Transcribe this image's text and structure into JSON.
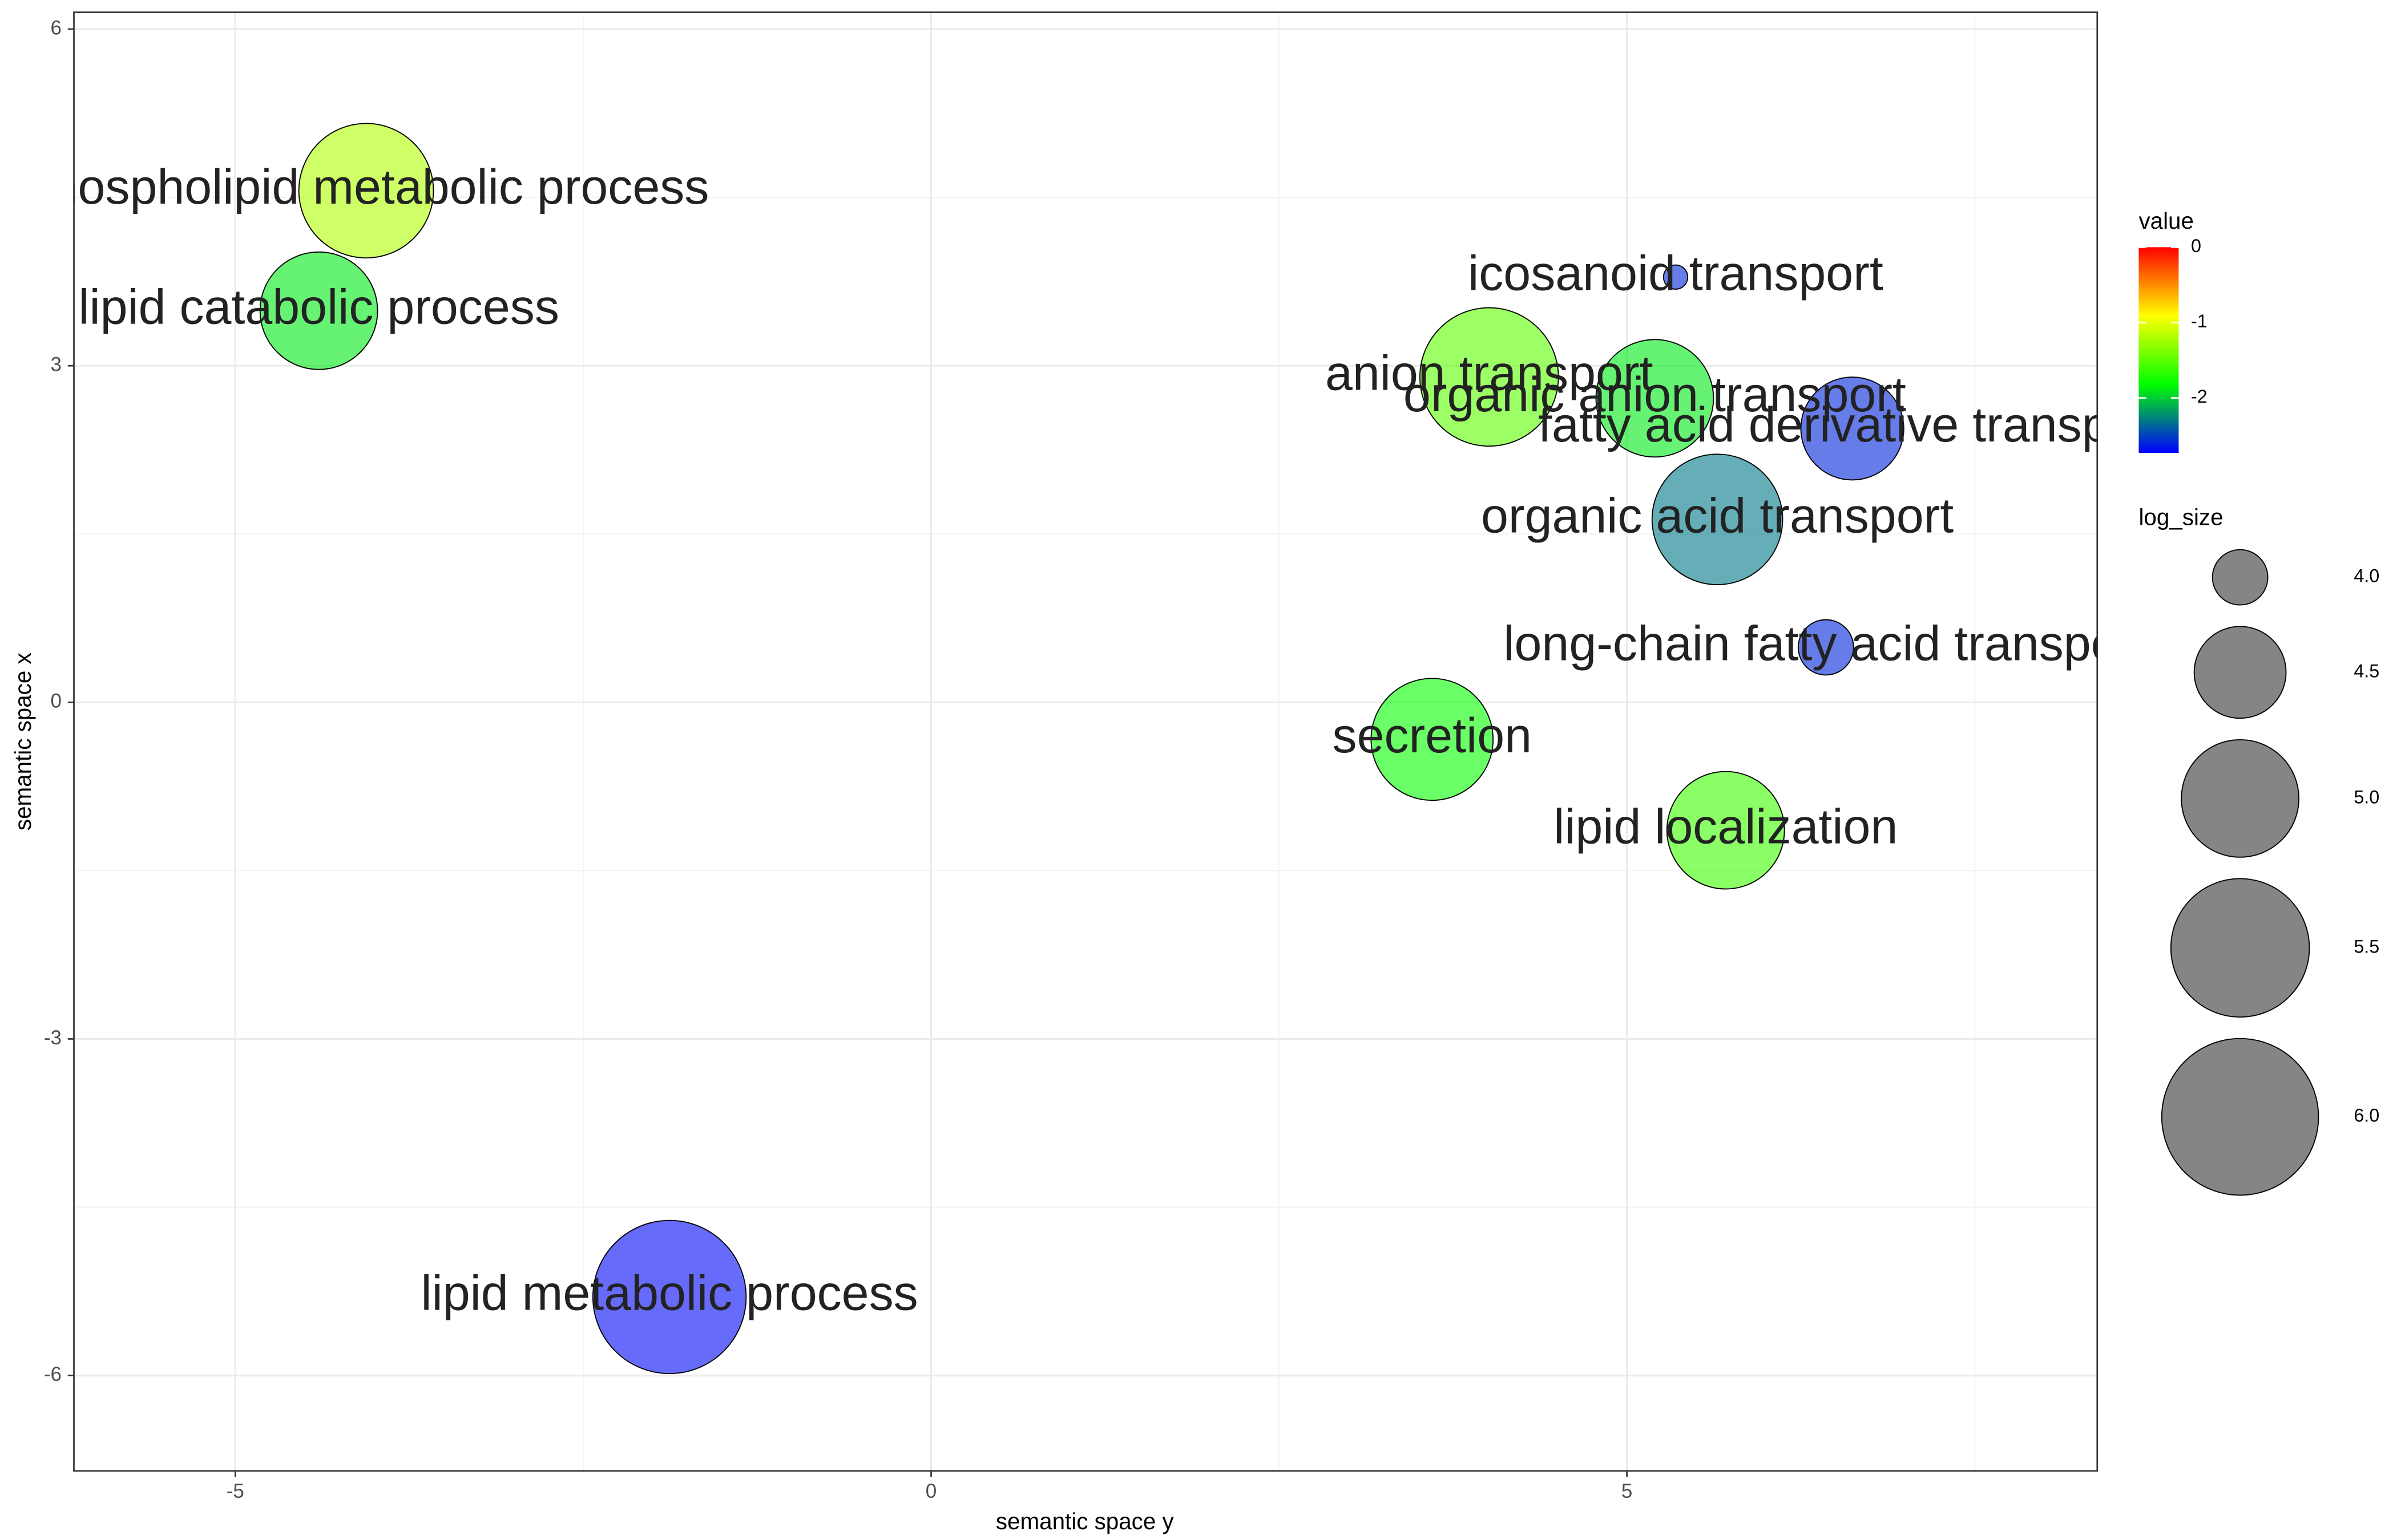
{
  "chart_data": {
    "type": "scatter",
    "x_label": "semantic space y",
    "y_label": "semantic space x",
    "xlim": [
      -6.16,
      8.38
    ],
    "ylim": [
      -6.85,
      6.15
    ],
    "xticks": [
      -5,
      0,
      5
    ],
    "yticks": [
      -6,
      -3,
      0,
      3,
      6
    ],
    "xminor": [
      -2.5,
      2.5,
      7.5
    ],
    "yminor": [
      -4.5,
      -1.5,
      1.5,
      4.5
    ],
    "grid": true,
    "fill_opacity": 0.6,
    "points": {
      "labels": [
        "phospholipid metabolic process",
        "lipid catabolic process",
        "icosanoid transport",
        "anion transport",
        "organic anion transport",
        "fatty acid derivative transport",
        "organic acid transport",
        "long-chain fatty acid transport",
        "secretion",
        "lipid localization",
        "lipid metabolic process"
      ],
      "x": [
        -4.06,
        -4.4,
        5.35,
        4.01,
        5.2,
        6.62,
        5.65,
        6.43,
        3.6,
        5.71,
        -1.88
      ],
      "y": [
        4.56,
        3.49,
        3.79,
        2.9,
        2.71,
        2.44,
        1.63,
        0.49,
        -0.33,
        -1.14,
        -5.3
      ],
      "value": [
        -1.2,
        -1.9,
        -2.6,
        -1.5,
        -1.9,
        -2.6,
        -2.3,
        -2.6,
        -1.8,
        -1.6,
        -2.7
      ],
      "log_size": [
        5.4,
        5.0,
        3.77,
        5.5,
        5.0,
        4.7,
        5.3,
        4.0,
        5.1,
        5.0,
        5.9
      ]
    },
    "color_legend": {
      "title": "value",
      "lim": [
        -2.73,
        0
      ],
      "ticks": [
        0,
        -1,
        -2
      ],
      "colors": [
        "#0000ff",
        "#00ff00",
        "#ffff00",
        "#ff0000"
      ]
    },
    "size_legend": {
      "title": "log_size",
      "ticks": [
        {
          "value": 4,
          "label": "4.0"
        },
        {
          "value": 4.5,
          "label": "4.5"
        },
        {
          "value": 5,
          "label": "5.0"
        },
        {
          "value": 5.5,
          "label": "5.5"
        },
        {
          "value": 6,
          "label": "6.0"
        }
      ]
    }
  }
}
